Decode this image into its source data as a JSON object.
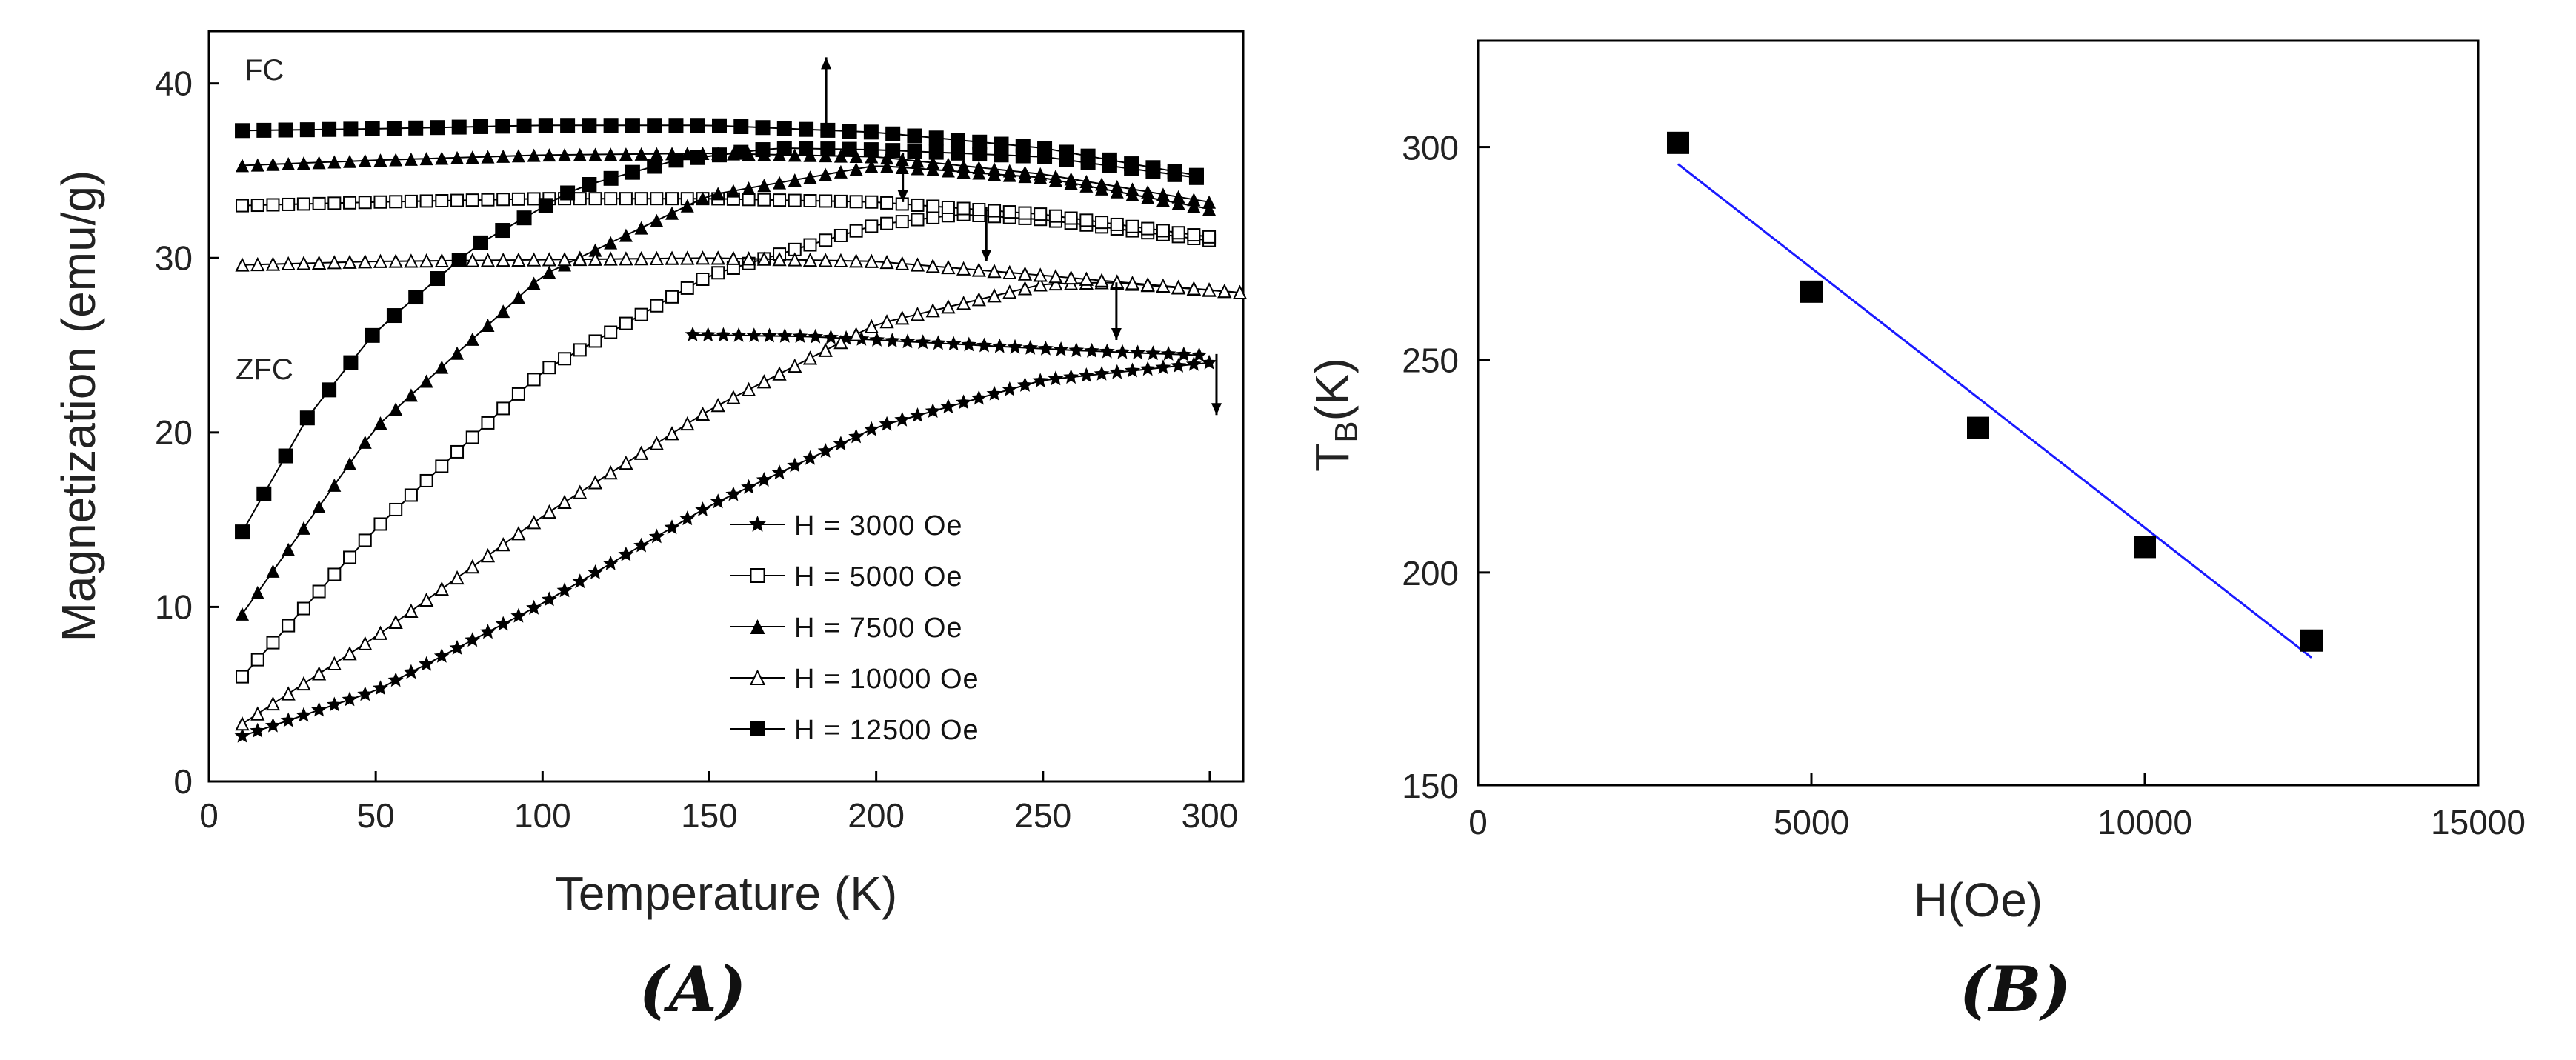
{
  "chart_data": [
    {
      "type": "line",
      "panel_label": "(A)",
      "xlabel": "Temperature (K)",
      "ylabel": "Magnetization (emu/g)",
      "xlim": [
        0,
        310
      ],
      "ylim": [
        0,
        43
      ],
      "xticks": [
        "0",
        "50",
        "100",
        "150",
        "200",
        "250",
        "300"
      ],
      "yticks": [
        "0",
        "10",
        "20",
        "30",
        "40"
      ],
      "annotations": [
        "FC",
        "ZFC"
      ],
      "legend_position": "bottom-right",
      "series": [
        {
          "name": "H =  3000 Oe",
          "marker": "star",
          "zfc": {
            "x": [
              10,
              50,
              100,
              150,
              200,
              250,
              300
            ],
            "y": [
              2.6,
              5.2,
              10.2,
              15.8,
              20.3,
              23.0,
              24.0
            ]
          },
          "fc": {
            "x": [
              145,
              180,
              220,
              260,
              300
            ],
            "y": [
              25.6,
              25.5,
              25.1,
              24.7,
              24.4
            ]
          },
          "arrow": {
            "x": 302,
            "from": 24.5,
            "to": 21.0
          }
        },
        {
          "name": "H =  5000 Oe",
          "marker": "open-square",
          "zfc": {
            "x": [
              10,
              50,
              100,
              150,
              200,
              225,
              250,
              300
            ],
            "y": [
              6.0,
              14.5,
              23.5,
              29.0,
              31.9,
              32.5,
              32.2,
              31.0
            ]
          },
          "fc": {
            "x": [
              10,
              50,
              100,
              150,
              200,
              250,
              300
            ],
            "y": [
              33.0,
              33.2,
              33.4,
              33.4,
              33.2,
              32.5,
              31.2
            ]
          },
          "arrow": {
            "x": 233,
            "from": 32.9,
            "to": 29.8
          }
        },
        {
          "name": "H =  7500 Oe",
          "marker": "filled-triangle",
          "zfc": {
            "x": [
              10,
              50,
              100,
              150,
              200,
              250,
              300
            ],
            "y": [
              9.6,
              20.3,
              29.0,
              33.6,
              35.3,
              34.6,
              32.8
            ]
          },
          "fc": {
            "x": [
              10,
              50,
              100,
              150,
              200,
              250,
              300
            ],
            "y": [
              35.3,
              35.6,
              35.9,
              36.0,
              35.8,
              34.8,
              33.2
            ]
          },
          "arrow": {
            "x": 208,
            "from": 36.0,
            "to": 33.2
          }
        },
        {
          "name": "H = 10000 Oe",
          "marker": "open-triangle",
          "zfc": {
            "x": [
              10,
              50,
              100,
              150,
              200,
              250,
              270,
              310
            ],
            "y": [
              3.3,
              8.3,
              15.2,
              21.3,
              26.2,
              28.5,
              28.6,
              28.0
            ]
          },
          "fc": {
            "x": [
              10,
              50,
              100,
              150,
              200,
              250,
              310
            ],
            "y": [
              29.6,
              29.8,
              29.9,
              30.0,
              29.8,
              29.0,
              28.0
            ]
          },
          "arrow": {
            "x": 272,
            "from": 28.6,
            "to": 25.3
          }
        },
        {
          "name": "H = 12500 Oe",
          "marker": "filled-square",
          "zfc": {
            "x": [
              10,
              30,
              50,
              80,
              110,
              140,
              170,
              200,
              250,
              300
            ],
            "y": [
              14.3,
              21.0,
              25.8,
              30.7,
              34.0,
              35.6,
              36.3,
              36.2,
              35.8,
              34.5
            ]
          },
          "fc": {
            "x": [
              10,
              50,
              100,
              150,
              200,
              250,
              300
            ],
            "y": [
              37.3,
              37.4,
              37.6,
              37.6,
              37.2,
              36.3,
              34.6
            ]
          },
          "arrow": {
            "x": 185,
            "from": 37.6,
            "to": 41.5
          }
        }
      ]
    },
    {
      "type": "scatter",
      "panel_label": "(B)",
      "xlabel": "H(Oe)",
      "ylabel": "T",
      "ylabel_sub": "B",
      "ylabel_unit": "(K)",
      "xlim": [
        0,
        15000
      ],
      "ylim": [
        150,
        325
      ],
      "xticks": [
        "0",
        "5000",
        "10000",
        "15000"
      ],
      "yticks": [
        "150",
        "200",
        "250",
        "300"
      ],
      "series": [
        {
          "marker": "filled-square",
          "x": [
            3000,
            5000,
            7500,
            10000,
            12500
          ],
          "y": [
            301,
            266,
            234,
            206,
            184
          ]
        }
      ],
      "fit": {
        "x": [
          3000,
          12500
        ],
        "y": [
          296,
          180
        ],
        "color": "#1a1aff"
      }
    }
  ]
}
